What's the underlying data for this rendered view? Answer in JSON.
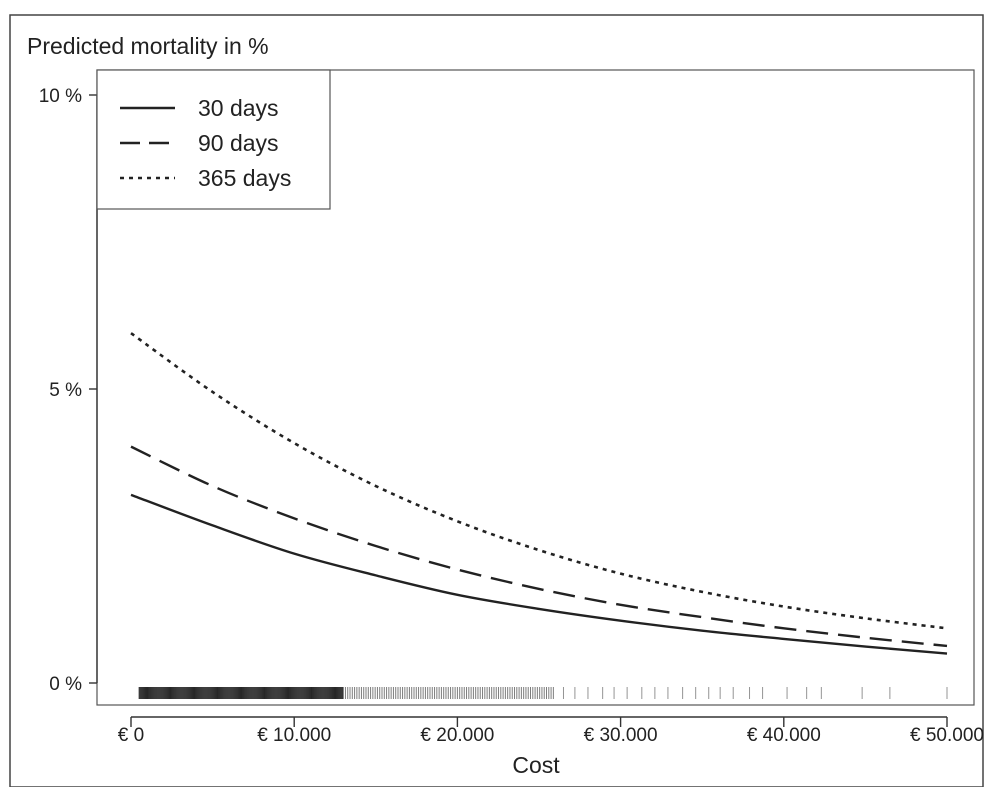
{
  "chart_data": {
    "type": "line",
    "title": "Predicted mortality in %",
    "xlabel": "Cost",
    "ylabel": "",
    "xlim": [
      0,
      50000
    ],
    "ylim": [
      0,
      10
    ],
    "x_ticks": [
      0,
      10000,
      20000,
      30000,
      40000,
      50000
    ],
    "x_tick_labels": [
      "€ 0",
      "€ 10.000",
      "€ 20.000",
      "€ 30.000",
      "€ 40.000",
      "€ 50.000"
    ],
    "y_ticks": [
      0,
      5,
      10
    ],
    "y_tick_labels": [
      "0 %",
      "5 %",
      "10 %"
    ],
    "grid": false,
    "legend_position": "top-left",
    "x": [
      0,
      5000,
      10000,
      15000,
      20000,
      25000,
      30000,
      35000,
      40000,
      45000,
      50000
    ],
    "series": [
      {
        "name": "30 days",
        "style": "solid",
        "values": [
          3.2,
          2.68,
          2.2,
          1.83,
          1.5,
          1.26,
          1.06,
          0.89,
          0.75,
          0.62,
          0.5
        ]
      },
      {
        "name": "90 days",
        "style": "dashed",
        "values": [
          4.02,
          3.35,
          2.8,
          2.33,
          1.93,
          1.6,
          1.33,
          1.12,
          0.93,
          0.77,
          0.63
        ]
      },
      {
        "name": "365 days",
        "style": "dotted",
        "values": [
          5.95,
          4.95,
          4.08,
          3.35,
          2.75,
          2.26,
          1.86,
          1.55,
          1.3,
          1.1,
          0.93
        ]
      }
    ],
    "rug": {
      "description": "observed cost values",
      "dense_ranges": [
        [
          500,
          13000
        ]
      ],
      "medium_ranges": [
        [
          13000,
          26000
        ]
      ],
      "sparse_values": [
        26500,
        27200,
        28000,
        28900,
        29600,
        30400,
        31300,
        32100,
        32900,
        33800,
        34600,
        35400,
        36100,
        36900,
        37900,
        38700,
        40200,
        41400,
        42300,
        44800,
        46500,
        50000
      ]
    },
    "colors": {
      "line": "#222222",
      "axis": "#333333"
    }
  }
}
